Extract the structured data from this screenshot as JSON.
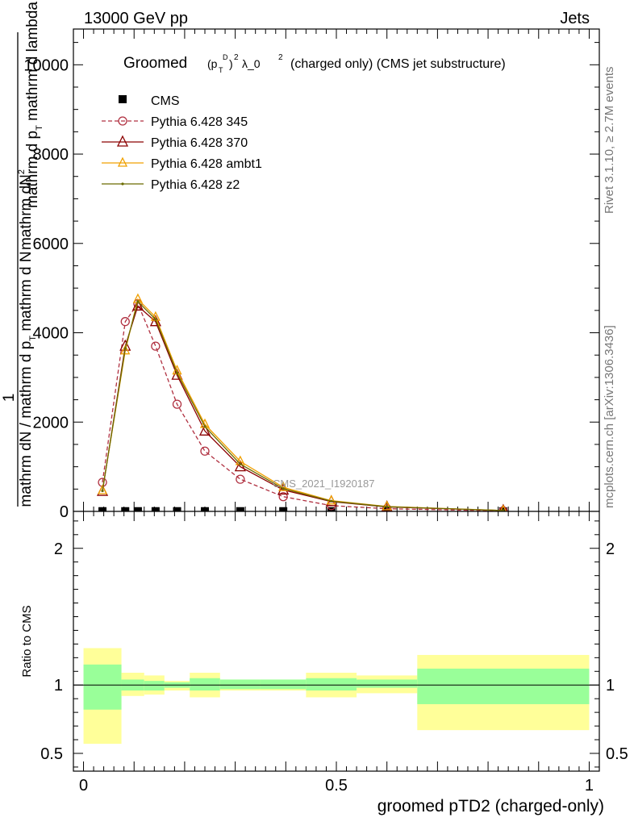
{
  "header": {
    "left": "13000 GeV pp",
    "right": "Jets",
    "title_main": "Groomed",
    "title_math": "(p",
    "title_sub_T": "T",
    "title_sup_D": "D",
    "title_sq": "2",
    "title_lambda": "λ_0",
    "title_lambda_sq": "2",
    "title_rest": "(charged only) (CMS jet substructure)"
  },
  "side_labels": {
    "rivet": "Rivet 3.1.10, ≥ 2.7M events",
    "mcplots": "mcplots.cern.ch [arXiv:1306.3436]"
  },
  "analysis_label": "CMS_2021_I1920187",
  "ylabel_main": {
    "top_line1": "mathrm d",
    "top_N": "N",
    "top_sup": "2",
    "top_line2": "mathrm d p",
    "top_line2_sub": "T",
    "top_line2_b": " mathrm d lambda",
    "one": "1",
    "bottom": "mathrm dN / mathrm d p",
    "bottom_sub": "T",
    "bottom_b": " mathrm d N"
  },
  "ylabel_ratio": "Ratio to CMS",
  "xlabel": "groomed pTD2 (charged-only)",
  "legend": [
    {
      "name": "CMS"
    },
    {
      "name": "Pythia 6.428 345"
    },
    {
      "name": "Pythia 6.428 370"
    },
    {
      "name": "Pythia 6.428 ambt1"
    },
    {
      "name": "Pythia 6.428 z2"
    }
  ],
  "colors": {
    "cms": "#000000",
    "p345": "#b03040",
    "p370": "#8b0000",
    "ambt1": "#f0a000",
    "z2": "#6b6b00",
    "band_inner": "#99ff99",
    "band_outer": "#ffff99"
  },
  "chart_data": [
    {
      "type": "line",
      "panel": "main",
      "xlim": [
        -0.02,
        1.02
      ],
      "ylim": [
        0,
        10800
      ],
      "y_ticks": [
        {
          "value": 0,
          "label": "0"
        },
        {
          "value": 2000,
          "label": "2000"
        },
        {
          "value": 4000,
          "label": "4000"
        },
        {
          "value": 6000,
          "label": "6000"
        },
        {
          "value": 8000,
          "label": "8000"
        },
        {
          "value": 10000,
          "label": "10000"
        }
      ],
      "x": [
        0.0375,
        0.0825,
        0.1075,
        0.1425,
        0.185,
        0.24,
        0.31,
        0.395,
        0.49,
        0.6,
        0.83
      ],
      "series": [
        {
          "name": "CMS",
          "key": "cms",
          "values": [
            5,
            5,
            5,
            5,
            5,
            5,
            5,
            5,
            5,
            2,
            1
          ]
        },
        {
          "name": "Pythia 6.428 345",
          "key": "p345",
          "values": [
            650,
            4250,
            4650,
            3700,
            2400,
            1350,
            720,
            330,
            130,
            60,
            10
          ]
        },
        {
          "name": "Pythia 6.428 370",
          "key": "p370",
          "values": [
            450,
            3700,
            4600,
            4250,
            3050,
            1800,
            1000,
            480,
            220,
            100,
            20
          ]
        },
        {
          "name": "Pythia 6.428 ambt1",
          "key": "ambt1",
          "values": [
            470,
            3600,
            4750,
            4350,
            3150,
            1950,
            1120,
            540,
            240,
            110,
            20
          ]
        },
        {
          "name": "Pythia 6.428 z2",
          "key": "z2",
          "values": [
            460,
            3650,
            4700,
            4300,
            3100,
            1900,
            1060,
            510,
            230,
            105,
            20
          ]
        }
      ]
    },
    {
      "type": "area",
      "panel": "ratio",
      "xlim": [
        -0.02,
        1.02
      ],
      "ylim": [
        0.37,
        2.27
      ],
      "x_ticks": [
        {
          "value": 0,
          "label": "0"
        },
        {
          "value": 0.5,
          "label": "0.5"
        },
        {
          "value": 1,
          "label": "1"
        }
      ],
      "y_ticks": [
        {
          "value": 0.5,
          "label": "0.5"
        },
        {
          "value": 1,
          "label": "1"
        },
        {
          "value": 2,
          "label": "2"
        }
      ],
      "bins": [
        {
          "x0": 0.0,
          "x1": 0.075,
          "inner": [
            0.82,
            1.15
          ],
          "outer": [
            0.57,
            1.27
          ]
        },
        {
          "x0": 0.075,
          "x1": 0.12,
          "inner": [
            0.96,
            1.04
          ],
          "outer": [
            0.92,
            1.09
          ]
        },
        {
          "x0": 0.12,
          "x1": 0.16,
          "inner": [
            0.96,
            1.03
          ],
          "outer": [
            0.93,
            1.07
          ]
        },
        {
          "x0": 0.16,
          "x1": 0.21,
          "inner": [
            0.98,
            1.02
          ],
          "outer": [
            0.96,
            1.03
          ]
        },
        {
          "x0": 0.21,
          "x1": 0.27,
          "inner": [
            0.96,
            1.05
          ],
          "outer": [
            0.91,
            1.09
          ]
        },
        {
          "x0": 0.27,
          "x1": 0.35,
          "inner": [
            0.97,
            1.04
          ],
          "outer": [
            0.96,
            1.04
          ]
        },
        {
          "x0": 0.35,
          "x1": 0.44,
          "inner": [
            0.97,
            1.04
          ],
          "outer": [
            0.96,
            1.04
          ]
        },
        {
          "x0": 0.44,
          "x1": 0.54,
          "inner": [
            0.96,
            1.05
          ],
          "outer": [
            0.91,
            1.09
          ]
        },
        {
          "x0": 0.54,
          "x1": 0.66,
          "inner": [
            0.98,
            1.04
          ],
          "outer": [
            0.94,
            1.07
          ]
        },
        {
          "x0": 0.66,
          "x1": 1.0,
          "inner": [
            0.86,
            1.12
          ],
          "outer": [
            0.67,
            1.22
          ]
        }
      ],
      "reference": 1
    }
  ]
}
